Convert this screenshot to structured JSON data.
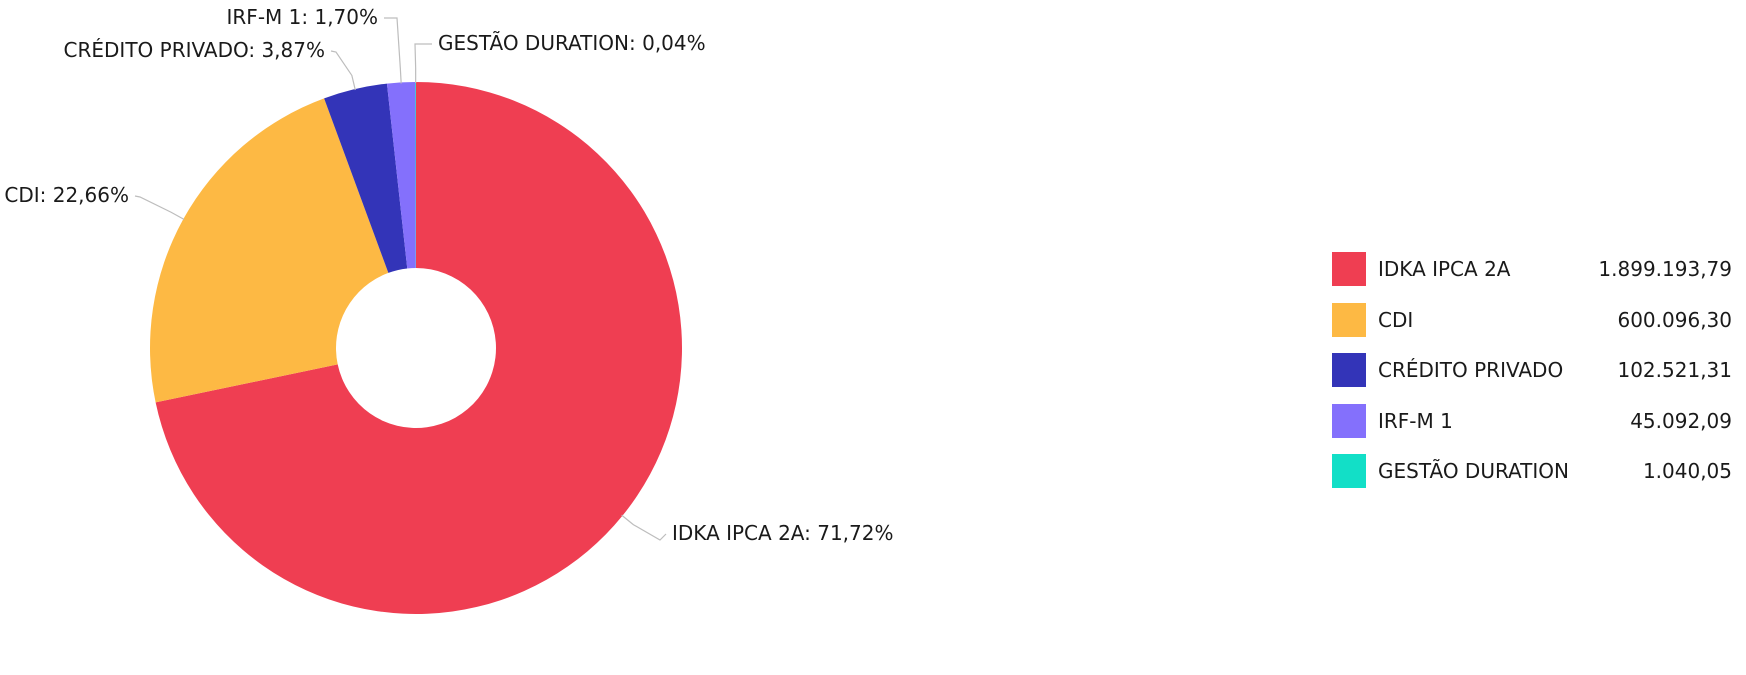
{
  "chart_data": {
    "type": "pie",
    "donut": true,
    "slices": [
      {
        "name": "IDKA IPCA 2A",
        "percent": 71.72,
        "percent_label": "71,72%",
        "value": 1899193.79,
        "value_label": "1.899.193,79",
        "color": "#ef3e52"
      },
      {
        "name": "CDI",
        "percent": 22.66,
        "percent_label": "22,66%",
        "value": 600096.3,
        "value_label": "600.096,30",
        "color": "#fdb944"
      },
      {
        "name": "CRÉDITO PRIVADO",
        "percent": 3.87,
        "percent_label": "3,87%",
        "value": 102521.31,
        "value_label": "102.521,31",
        "color": "#3334b8"
      },
      {
        "name": "IRF-M 1",
        "percent": 1.7,
        "percent_label": "1,70%",
        "value": 45092.09,
        "value_label": "45.092,09",
        "color": "#8470fc"
      },
      {
        "name": "GESTÃO DURATION",
        "percent": 0.04,
        "percent_label": "0,04%",
        "value": 1040.05,
        "value_label": "1.040,05",
        "color": "#12dfc7"
      }
    ],
    "legend_position": "right"
  }
}
